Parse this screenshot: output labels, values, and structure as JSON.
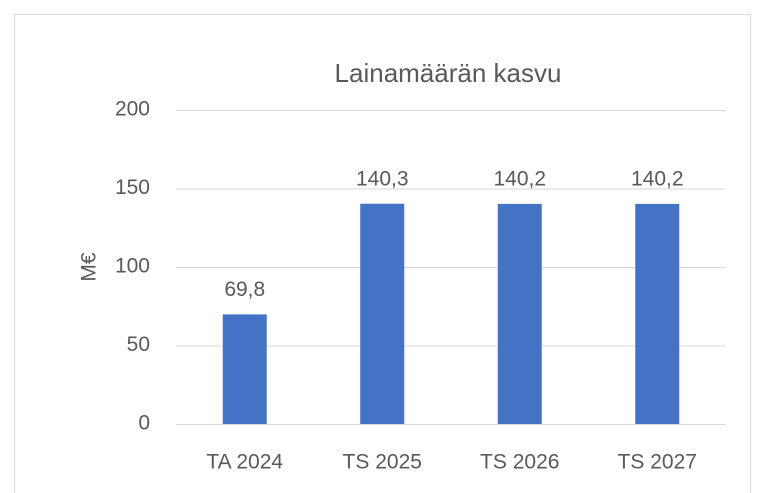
{
  "chart_data": {
    "type": "bar",
    "title": "Lainamäärän kasvu",
    "y_label": "M€",
    "categories": [
      "TA 2024",
      "TS 2025",
      "TS 2026",
      "TS 2027"
    ],
    "values": [
      69.8,
      140.3,
      140.2,
      140.2
    ],
    "value_labels": [
      "69,8",
      "140,3",
      "140,2",
      "140,2"
    ],
    "color": "#4472c4",
    "ylim": [
      0,
      200
    ],
    "yticks": [
      0,
      50,
      100,
      150,
      200
    ],
    "grid": true
  }
}
